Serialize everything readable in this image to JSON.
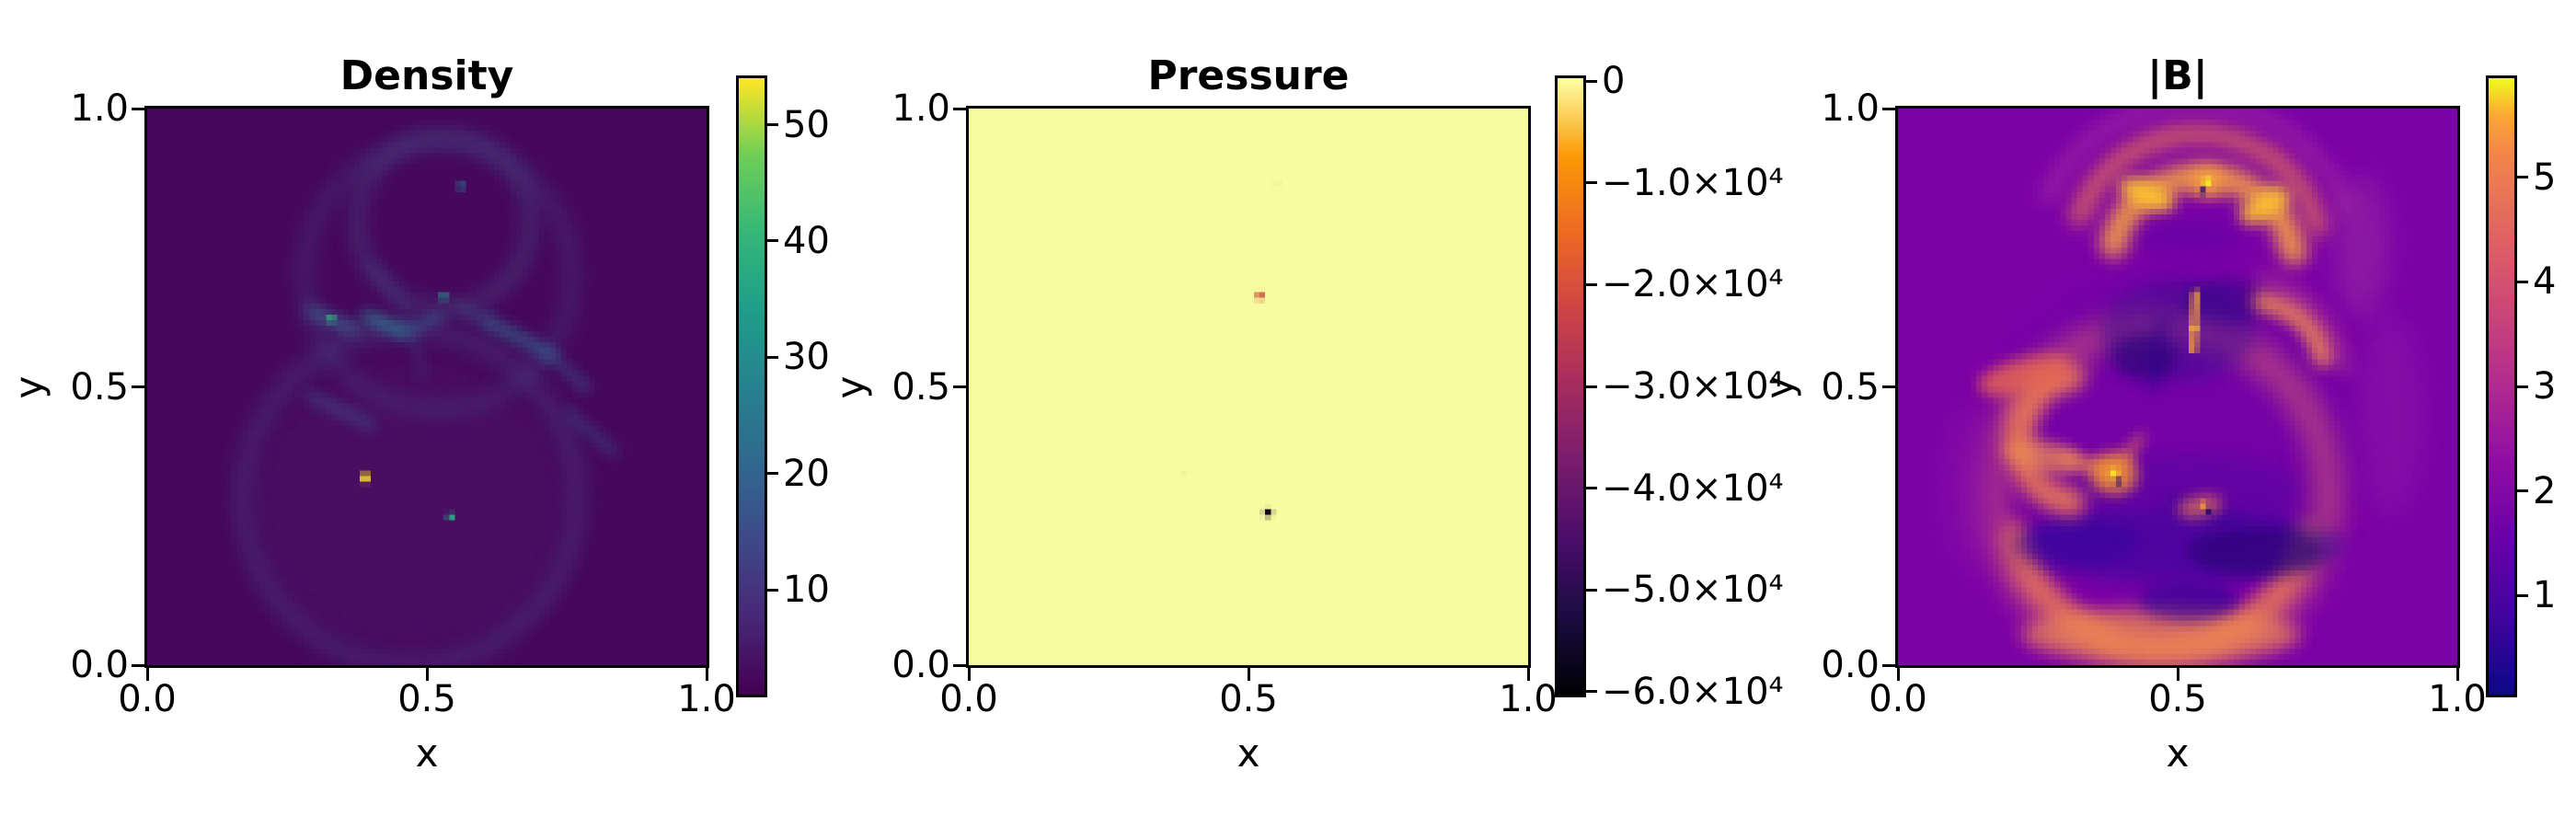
{
  "figure": {
    "background": "#ffffff"
  },
  "chart_data": [
    {
      "type": "heatmap",
      "title": "Density",
      "xlabel": "x",
      "ylabel": "y",
      "xlim": [
        0.0,
        1.0
      ],
      "ylim": [
        0.0,
        1.0
      ],
      "xticks": [
        {
          "label": "0.0",
          "pos": 0.0
        },
        {
          "label": "0.5",
          "pos": 0.5
        },
        {
          "label": "1.0",
          "pos": 1.0
        }
      ],
      "yticks": [
        {
          "label": "0.0",
          "pos": 0.0
        },
        {
          "label": "0.5",
          "pos": 0.5
        },
        {
          "label": "1.0",
          "pos": 1.0
        }
      ],
      "colorbar": {
        "colormap": "viridis",
        "vmin": 1.0,
        "vmax": 54.0,
        "ticks": [
          {
            "label": "10",
            "value": 10
          },
          {
            "label": "20",
            "value": 20
          },
          {
            "label": "30",
            "value": 30
          },
          {
            "label": "40",
            "value": 40
          },
          {
            "label": "50",
            "value": 50
          }
        ]
      },
      "description": "Mostly uniform low density (dark purple) with faint circular shock shells, teal filaments near mid-height, four small teal/green hot pixels and one bright yellow pixel near (0.39, 0.34).",
      "features": {
        "ops": [
          {
            "op": "fill",
            "color": "#46085c"
          },
          {
            "op": "blob",
            "x": 0.47,
            "y": 0.28,
            "rx": 0.29,
            "ry": 0.26,
            "color": "#4c1168",
            "alpha": 0.5,
            "blur": 2
          },
          {
            "op": "ring",
            "x": 0.47,
            "y": 0.3,
            "r": 0.3,
            "w": 0.035,
            "color": "#47357a",
            "alpha": 0.5,
            "a0": 0,
            "a1": 360,
            "blur": 1.6
          },
          {
            "op": "ring",
            "x": 0.52,
            "y": 0.7,
            "r": 0.24,
            "w": 0.028,
            "color": "#453a7c",
            "alpha": 0.45,
            "a0": 0,
            "a1": 360,
            "blur": 1.6
          },
          {
            "op": "ring",
            "x": 0.53,
            "y": 0.795,
            "r": 0.155,
            "w": 0.025,
            "color": "#45497f",
            "alpha": 0.5,
            "a0": 0,
            "a1": 360,
            "blur": 1.4
          },
          {
            "op": "line",
            "x1": 0.295,
            "y1": 0.635,
            "x2": 0.37,
            "y2": 0.603,
            "w": 0.022,
            "color": "#3a6b8d",
            "alpha": 0.8,
            "blur": 1
          },
          {
            "op": "line",
            "x1": 0.395,
            "y1": 0.625,
            "x2": 0.458,
            "y2": 0.6,
            "w": 0.024,
            "color": "#2c7a8e",
            "alpha": 0.9,
            "blur": 0.8
          },
          {
            "op": "line",
            "x1": 0.458,
            "y1": 0.6,
            "x2": 0.525,
            "y2": 0.628,
            "w": 0.016,
            "color": "#33628c",
            "alpha": 0.8,
            "blur": 0.8
          },
          {
            "op": "line",
            "x1": 0.555,
            "y1": 0.645,
            "x2": 0.61,
            "y2": 0.617,
            "w": 0.014,
            "color": "#3a5f8b",
            "alpha": 0.7,
            "blur": 0.8
          },
          {
            "op": "line",
            "x1": 0.61,
            "y1": 0.617,
            "x2": 0.72,
            "y2": 0.558,
            "w": 0.02,
            "color": "#2f6c8e",
            "alpha": 0.8,
            "blur": 0.8
          },
          {
            "op": "line",
            "x1": 0.72,
            "y1": 0.558,
            "x2": 0.785,
            "y2": 0.497,
            "w": 0.015,
            "color": "#35638c",
            "alpha": 0.65,
            "blur": 0.8
          },
          {
            "op": "line",
            "x1": 0.755,
            "y1": 0.452,
            "x2": 0.835,
            "y2": 0.383,
            "w": 0.014,
            "color": "#35638c",
            "alpha": 0.6,
            "blur": 0.8
          },
          {
            "op": "line",
            "x1": 0.29,
            "y1": 0.483,
            "x2": 0.4,
            "y2": 0.432,
            "w": 0.018,
            "color": "#3a5f8b",
            "alpha": 0.6,
            "blur": 1
          },
          {
            "op": "line",
            "x1": 0.4,
            "y1": 0.72,
            "x2": 0.468,
            "y2": 0.635,
            "w": 0.012,
            "color": "#434f85",
            "alpha": 0.55,
            "blur": 0.8
          },
          {
            "op": "line",
            "x1": 0.475,
            "y1": 0.6,
            "x2": 0.492,
            "y2": 0.52,
            "w": 0.012,
            "color": "#41497f",
            "alpha": 0.5,
            "blur": 0.8
          },
          {
            "op": "dot",
            "x": 0.561,
            "y": 0.861,
            "s": 0.012,
            "color": "#2a788e"
          },
          {
            "op": "dot",
            "x": 0.53,
            "y": 0.662,
            "s": 0.012,
            "color": "#1fa187"
          },
          {
            "op": "dot",
            "x": 0.329,
            "y": 0.623,
            "s": 0.013,
            "color": "#2db27d"
          },
          {
            "op": "dot",
            "x": 0.39,
            "y": 0.337,
            "s": 0.016,
            "color": "#fde725"
          },
          {
            "op": "dot",
            "x": 0.543,
            "y": 0.266,
            "s": 0.012,
            "color": "#27ad81"
          }
        ]
      }
    },
    {
      "type": "heatmap",
      "title": "Pressure",
      "xlabel": "x",
      "ylabel": "y",
      "xlim": [
        0.0,
        1.0
      ],
      "ylim": [
        0.0,
        1.0
      ],
      "xticks": [
        {
          "label": "0.0",
          "pos": 0.0
        },
        {
          "label": "0.5",
          "pos": 0.5
        },
        {
          "label": "1.0",
          "pos": 1.0
        }
      ],
      "yticks": [
        {
          "label": "0.0",
          "pos": 0.0
        },
        {
          "label": "0.5",
          "pos": 0.5
        },
        {
          "label": "1.0",
          "pos": 1.0
        }
      ],
      "colorbar": {
        "colormap": "inferno",
        "vmin": -60300,
        "vmax": 300,
        "ticks": [
          {
            "label": "0",
            "value": 0
          },
          {
            "label": "−1.0×10⁴",
            "value": -10000
          },
          {
            "label": "−2.0×10⁴",
            "value": -20000
          },
          {
            "label": "−3.0×10⁴",
            "value": -30000
          },
          {
            "label": "−4.0×10⁴",
            "value": -40000
          },
          {
            "label": "−5.0×10⁴",
            "value": -50000
          },
          {
            "label": "−6.0×10⁴",
            "value": -60000
          }
        ]
      },
      "description": "Nearly uniform field close to 0 (pale yellow) with a single red outlier pixel near (0.52, 0.66) and a single near-minimum black pixel near (0.54, 0.27).",
      "features": {
        "ops": [
          {
            "op": "fill",
            "color": "#f8fca1"
          },
          {
            "op": "dot",
            "x": 0.551,
            "y": 0.864,
            "s": 0.012,
            "color": "#eef39b"
          },
          {
            "op": "dot",
            "x": 0.385,
            "y": 0.344,
            "s": 0.012,
            "color": "#f0f59d"
          },
          {
            "op": "dot",
            "x": 0.521,
            "y": 0.664,
            "s": 0.013,
            "color": "#c84136"
          },
          {
            "op": "dot",
            "x": 0.535,
            "y": 0.274,
            "s": 0.013,
            "color": "#0d0721"
          }
        ]
      }
    },
    {
      "type": "heatmap",
      "title": "|B|",
      "xlabel": "x",
      "ylabel": "y",
      "xlim": [
        0.0,
        1.0
      ],
      "ylim": [
        0.0,
        1.0
      ],
      "xticks": [
        {
          "label": "0.0",
          "pos": 0.0
        },
        {
          "label": "0.5",
          "pos": 0.5
        },
        {
          "label": "1.0",
          "pos": 1.0
        }
      ],
      "yticks": [
        {
          "label": "0.0",
          "pos": 0.0
        },
        {
          "label": "0.5",
          "pos": 0.5
        },
        {
          "label": "1.0",
          "pos": 1.0
        }
      ],
      "colorbar": {
        "colormap": "plasma",
        "vmin": 0.05,
        "vmax": 5.95,
        "ticks": [
          {
            "label": "1",
            "value": 1
          },
          {
            "label": "2",
            "value": 2
          },
          {
            "label": "3",
            "value": 3
          },
          {
            "label": "4",
            "value": 4
          },
          {
            "label": "5",
            "value": 5
          }
        ]
      },
      "description": "Magnetic field magnitude on purple background: bright orange crown arcs at top with a yellow X-point at (0.55, 0.87), tangled dark filaments mid-field with orange reconnection points at (0.39, 0.34) and (0.54, 0.29), and an orange bubble rim along the bottom.",
      "features": {
        "ops": [
          {
            "op": "fill",
            "color": "#7c02a7"
          },
          {
            "op": "blob",
            "x": 0.5,
            "y": 0.42,
            "rx": 0.33,
            "ry": 0.3,
            "color": "#6c01a8",
            "alpha": 0.5,
            "blur": 2.5
          },
          {
            "op": "ring",
            "x": 0.47,
            "y": 0.31,
            "r": 0.3,
            "w": 0.055,
            "color": "#cf5a71",
            "alpha": 0.6,
            "a0": 0,
            "a1": 360,
            "blur": 2
          },
          {
            "op": "ring",
            "x": 0.47,
            "y": 0.3,
            "r": 0.27,
            "w": 0.05,
            "color": "#ef7e50",
            "alpha": 0.75,
            "a0": 15,
            "a1": 165,
            "blur": 1.6
          },
          {
            "op": "blob",
            "x": 0.47,
            "y": 0.055,
            "rx": 0.25,
            "ry": 0.05,
            "color": "#ef8a50",
            "alpha": 0.7,
            "blur": 1.6
          },
          {
            "op": "blob",
            "x": 0.52,
            "y": 0.115,
            "rx": 0.09,
            "ry": 0.035,
            "color": "#2d0594",
            "alpha": 0.6,
            "blur": 1.2
          },
          {
            "op": "blob",
            "x": 0.5,
            "y": 0.215,
            "rx": 0.3,
            "ry": 0.065,
            "color": "#31079b",
            "alpha": 0.55,
            "blur": 1.6
          },
          {
            "op": "blob",
            "x": 0.64,
            "y": 0.205,
            "rx": 0.12,
            "ry": 0.045,
            "color": "#21046e",
            "alpha": 0.55,
            "blur": 1.2
          },
          {
            "op": "blob",
            "x": 0.33,
            "y": 0.225,
            "rx": 0.1,
            "ry": 0.04,
            "color": "#31079b",
            "alpha": 0.45,
            "blur": 1.2
          },
          {
            "op": "blob",
            "x": 0.52,
            "y": 0.31,
            "rx": 0.2,
            "ry": 0.07,
            "color": "#4a049e",
            "alpha": 0.4,
            "blur": 1.6
          },
          {
            "op": "ring",
            "x": 0.33,
            "y": 0.405,
            "r": 0.115,
            "w": 0.05,
            "color": "#ef7e50",
            "alpha": 0.85,
            "a0": 100,
            "a1": 260,
            "blur": 1.4
          },
          {
            "op": "blob",
            "x": 0.225,
            "y": 0.52,
            "rx": 0.085,
            "ry": 0.032,
            "color": "#e8694f",
            "alpha": 0.8,
            "rot": -15,
            "blur": 1.2
          },
          {
            "op": "blob",
            "x": 0.26,
            "y": 0.375,
            "rx": 0.075,
            "ry": 0.028,
            "color": "#ef9050",
            "alpha": 0.7,
            "rot": 10,
            "blur": 1.2
          },
          {
            "op": "line",
            "x1": 0.295,
            "y1": 0.372,
            "x2": 0.382,
            "y2": 0.348,
            "w": 0.02,
            "color": "#f08a50",
            "alpha": 0.85,
            "blur": 1
          },
          {
            "op": "line",
            "x1": 0.387,
            "y1": 0.348,
            "x2": 0.435,
            "y2": 0.41,
            "w": 0.013,
            "color": "#e87a52",
            "alpha": 0.8,
            "blur": 1
          },
          {
            "op": "blob",
            "x": 0.386,
            "y": 0.345,
            "rx": 0.042,
            "ry": 0.038,
            "color": "#f9982c",
            "alpha": 0.8,
            "blur": 1.2
          },
          {
            "op": "dot",
            "x": 0.386,
            "y": 0.345,
            "s": 0.015,
            "color": "#fcdf24"
          },
          {
            "op": "dot",
            "x": 0.394,
            "y": 0.33,
            "s": 0.01,
            "color": "#1c0466"
          },
          {
            "op": "blob",
            "x": 0.5,
            "y": 0.6,
            "rx": 0.14,
            "ry": 0.09,
            "color": "#3a0b8f",
            "alpha": 0.5,
            "blur": 1.8
          },
          {
            "op": "blob",
            "x": 0.44,
            "y": 0.555,
            "rx": 0.06,
            "ry": 0.04,
            "color": "#21046e",
            "alpha": 0.5,
            "blur": 1.2
          },
          {
            "op": "blob",
            "x": 0.585,
            "y": 0.655,
            "rx": 0.08,
            "ry": 0.038,
            "color": "#2c0680",
            "alpha": 0.45,
            "blur": 1.2
          },
          {
            "op": "line",
            "x1": 0.455,
            "y1": 0.5,
            "x2": 0.477,
            "y2": 0.625,
            "w": 0.02,
            "color": "#30058f",
            "alpha": 0.5,
            "blur": 1.2
          },
          {
            "op": "line",
            "x1": 0.528,
            "y1": 0.565,
            "x2": 0.532,
            "y2": 0.668,
            "w": 0.012,
            "color": "#fca636",
            "alpha": 0.95,
            "blur": 0.6
          },
          {
            "op": "dot",
            "x": 0.53,
            "y": 0.605,
            "s": 0.01,
            "color": "#fdc828"
          },
          {
            "op": "ring",
            "x": 0.63,
            "y": 0.52,
            "r": 0.135,
            "w": 0.04,
            "color": "#ef8a50",
            "alpha": 0.8,
            "a0": 280,
            "a1": 345,
            "blur": 1.2
          },
          {
            "op": "ring",
            "x": 0.6,
            "y": 0.5,
            "r": 0.2,
            "w": 0.03,
            "color": "#c75584",
            "alpha": 0.4,
            "a0": 285,
            "a1": 350,
            "blur": 1.4
          },
          {
            "op": "ring",
            "x": 0.545,
            "y": 0.715,
            "r": 0.165,
            "w": 0.05,
            "color": "#f29b45",
            "alpha": 0.9,
            "a0": 195,
            "a1": 350,
            "blur": 1.4
          },
          {
            "op": "ring",
            "x": 0.535,
            "y": 0.73,
            "r": 0.225,
            "w": 0.04,
            "color": "#e87a52",
            "alpha": 0.65,
            "a0": 200,
            "a1": 345,
            "blur": 1.6
          },
          {
            "op": "ring",
            "x": 0.53,
            "y": 0.72,
            "r": 0.29,
            "w": 0.03,
            "color": "#b9449b",
            "alpha": 0.4,
            "a0": 205,
            "a1": 340,
            "blur": 1.8
          },
          {
            "op": "blob",
            "x": 0.445,
            "y": 0.845,
            "rx": 0.055,
            "ry": 0.022,
            "color": "#fdc42e",
            "alpha": 0.9,
            "rot": 25,
            "blur": 1
          },
          {
            "op": "blob",
            "x": 0.655,
            "y": 0.825,
            "rx": 0.05,
            "ry": 0.024,
            "color": "#fdc42e",
            "alpha": 0.85,
            "rot": -30,
            "blur": 1
          },
          {
            "op": "blob",
            "x": 0.52,
            "y": 0.77,
            "rx": 0.1,
            "ry": 0.035,
            "color": "#5e01a6",
            "alpha": 0.5,
            "blur": 1.4
          },
          {
            "op": "blob",
            "x": 0.553,
            "y": 0.868,
            "rx": 0.03,
            "ry": 0.028,
            "color": "#fca636",
            "alpha": 0.7,
            "blur": 1
          },
          {
            "op": "dot",
            "x": 0.553,
            "y": 0.868,
            "s": 0.014,
            "color": "#f5ec27"
          },
          {
            "op": "dot",
            "x": 0.545,
            "y": 0.852,
            "s": 0.01,
            "color": "#21046e"
          },
          {
            "op": "line",
            "x1": 0.48,
            "y1": 0.3,
            "x2": 0.6,
            "y2": 0.262,
            "w": 0.014,
            "color": "#2d0594",
            "alpha": 0.5,
            "blur": 1
          },
          {
            "op": "blob",
            "x": 0.54,
            "y": 0.285,
            "rx": 0.04,
            "ry": 0.018,
            "color": "#e87a52",
            "alpha": 0.75,
            "rot": -12,
            "blur": 0.8
          },
          {
            "op": "dot",
            "x": 0.545,
            "y": 0.288,
            "s": 0.01,
            "color": "#fca636"
          },
          {
            "op": "dot",
            "x": 0.556,
            "y": 0.276,
            "s": 0.008,
            "color": "#1c0466"
          },
          {
            "op": "blob",
            "x": 0.83,
            "y": 0.75,
            "rx": 0.05,
            "ry": 0.13,
            "color": "#a23a9d",
            "alpha": 0.4,
            "blur": 2
          },
          {
            "op": "blob",
            "x": 0.88,
            "y": 0.45,
            "rx": 0.06,
            "ry": 0.18,
            "color": "#8d17a5",
            "alpha": 0.5,
            "blur": 2
          },
          {
            "op": "blob",
            "x": 0.13,
            "y": 0.32,
            "rx": 0.05,
            "ry": 0.15,
            "color": "#8d17a5",
            "alpha": 0.45,
            "blur": 2
          }
        ]
      }
    }
  ]
}
